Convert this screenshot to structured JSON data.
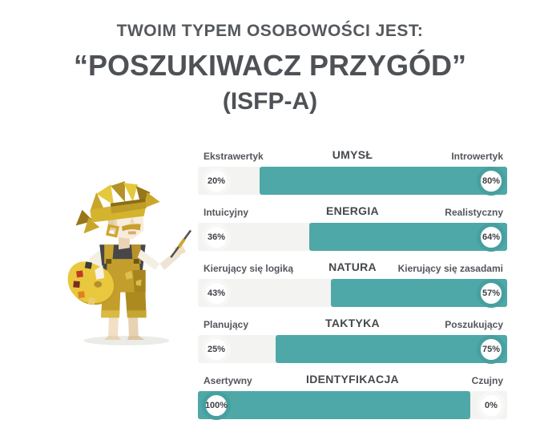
{
  "page": {
    "pretitle": "TWOIM TYPEM OSOBOWOŚCI JEST:",
    "title": "“POSZUKIWACZ PRZYGÓD”",
    "subtitle": "(ISFP-A)"
  },
  "illustration": {
    "name": "adventurer-artist-character"
  },
  "colors": {
    "teal": "#4fa8a8",
    "teal_dark": "#47a09f",
    "track": "#f3f3f1",
    "lose_ring": "#f7f7f5",
    "text": "#53565b",
    "title_text": "#4e5155"
  },
  "traits": {
    "rows": [
      {
        "title": "UMYSŁ",
        "left": {
          "label": "Ekstrawertyk",
          "pct": 20,
          "pct_label": "20%"
        },
        "right": {
          "label": "Introwertyk",
          "pct": 80,
          "pct_label": "80%"
        },
        "winner": "right"
      },
      {
        "title": "ENERGIA",
        "left": {
          "label": "Intuicyjny",
          "pct": 36,
          "pct_label": "36%"
        },
        "right": {
          "label": "Realistyczny",
          "pct": 64,
          "pct_label": "64%"
        },
        "winner": "right"
      },
      {
        "title": "NATURA",
        "left": {
          "label": "Kierujący się logiką",
          "pct": 43,
          "pct_label": "43%"
        },
        "right": {
          "label": "Kierujący się zasadami",
          "pct": 57,
          "pct_label": "57%"
        },
        "winner": "right"
      },
      {
        "title": "TAKTYKA",
        "left": {
          "label": "Planujący",
          "pct": 25,
          "pct_label": "25%"
        },
        "right": {
          "label": "Poszukujący",
          "pct": 75,
          "pct_label": "75%"
        },
        "winner": "right"
      },
      {
        "title": "IDENTYFIKACJA",
        "left": {
          "label": "Asertywny",
          "pct": 100,
          "pct_label": "100%"
        },
        "right": {
          "label": "Czujny",
          "pct": 0,
          "pct_label": "0%"
        },
        "winner": "left"
      }
    ]
  },
  "chart_data": {
    "type": "bar",
    "orientation": "horizontal",
    "unit": "%",
    "value_range": [
      0,
      100
    ],
    "pairs": [
      {
        "category": "UMYSŁ",
        "left_label": "Ekstrawertyk",
        "left_value": 20,
        "right_label": "Introwertyk",
        "right_value": 80,
        "dominant": "Introwertyk"
      },
      {
        "category": "ENERGIA",
        "left_label": "Intuicyjny",
        "left_value": 36,
        "right_label": "Realistyczny",
        "right_value": 64,
        "dominant": "Realistyczny"
      },
      {
        "category": "NATURA",
        "left_label": "Kierujący się logiką",
        "left_value": 43,
        "right_label": "Kierujący się zasadami",
        "right_value": 57,
        "dominant": "Kierujący się zasadami"
      },
      {
        "category": "TAKTYKA",
        "left_label": "Planujący",
        "left_value": 25,
        "right_label": "Poszukujący",
        "right_value": 75,
        "dominant": "Poszukujący"
      },
      {
        "category": "IDENTYFIKACJA",
        "left_label": "Asertywny",
        "left_value": 100,
        "right_label": "Czujny",
        "right_value": 0,
        "dominant": "Asertywny"
      }
    ]
  }
}
